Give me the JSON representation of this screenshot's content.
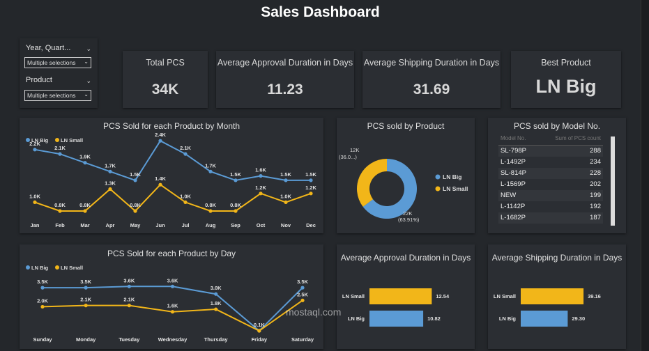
{
  "title": "Sales Dashboard",
  "slicers": [
    {
      "label": "Year, Quart...",
      "selection": "Multiple selections"
    },
    {
      "label": "Product",
      "selection": "Multiple selections"
    }
  ],
  "kpis": [
    {
      "label": "Total PCS",
      "value": "34K"
    },
    {
      "label": "Average Approval Duration in Days",
      "value": "11.23"
    },
    {
      "label": "Average Shipping Duration in Days",
      "value": "31.69"
    },
    {
      "label": "Best Product",
      "value": "LN Big"
    }
  ],
  "colors": {
    "ln_big": "#5b9bd5",
    "ln_small": "#f2b619"
  },
  "chart_data": [
    {
      "title": "PCS Sold for each Product by Month",
      "type": "line",
      "categories": [
        "Jan",
        "Feb",
        "Mar",
        "Apr",
        "May",
        "Jun",
        "Jul",
        "Aug",
        "Sep",
        "Oct",
        "Nov",
        "Dec"
      ],
      "series": [
        {
          "name": "LN Big",
          "values": [
            2.2,
            2.1,
            1.9,
            1.7,
            1.5,
            2.4,
            2.1,
            1.7,
            1.5,
            1.6,
            1.5,
            1.5
          ],
          "labels": [
            "2.2K",
            "2.1K",
            "1.9K",
            "1.7K",
            "1.5K",
            "2.4K",
            "2.1K",
            "1.7K",
            "1.5K",
            "1.6K",
            "1.5K",
            "1.5K"
          ]
        },
        {
          "name": "LN Small",
          "values": [
            1.0,
            0.8,
            0.8,
            1.3,
            0.8,
            1.4,
            1.0,
            0.8,
            0.8,
            1.2,
            1.0,
            1.2
          ],
          "labels": [
            "1.0K",
            "0.8K",
            "0.8K",
            "1.3K",
            "0.8K",
            "1.4K",
            "1.0K",
            "0.8K",
            "0.8K",
            "1.2K",
            "1.0K",
            "1.2K"
          ]
        }
      ],
      "legend": "top-left"
    },
    {
      "title": "PCS sold by Product",
      "type": "pie",
      "slices": [
        {
          "name": "LN Big",
          "value": 22,
          "label": "22K",
          "pct_label": "(63.91%)"
        },
        {
          "name": "LN Small",
          "value": 12,
          "label": "12K",
          "pct_label": "(36.0...)"
        }
      ],
      "legend": "right"
    },
    {
      "title": "PCS sold by Model No.",
      "type": "table",
      "columns": [
        "Model No.",
        "Sum of PCS count"
      ],
      "rows": [
        [
          "SL-798P",
          "288"
        ],
        [
          "L-1492P",
          "234"
        ],
        [
          "SL-814P",
          "228"
        ],
        [
          "L-1569P",
          "202"
        ],
        [
          "NEW",
          "199"
        ],
        [
          "L-1142P",
          "192"
        ],
        [
          "L-1682P",
          "187"
        ]
      ]
    },
    {
      "title": "PCS Sold for each Product by Day",
      "type": "line",
      "categories": [
        "Sunday",
        "Monday",
        "Tuesday",
        "Wednesday",
        "Thursday",
        "Friday",
        "Saturday"
      ],
      "series": [
        {
          "name": "LN Big",
          "values": [
            3.5,
            3.5,
            3.6,
            3.6,
            3.0,
            0.1,
            3.5
          ],
          "labels": [
            "3.5K",
            "3.5K",
            "3.6K",
            "3.6K",
            "3.0K",
            "",
            "3.5K"
          ]
        },
        {
          "name": "LN Small",
          "values": [
            2.0,
            2.1,
            2.1,
            1.6,
            1.8,
            0.1,
            2.5
          ],
          "labels": [
            "2.0K",
            "2.1K",
            "2.1K",
            "1.6K",
            "1.8K",
            "0.1K",
            "2.5K"
          ]
        }
      ],
      "legend": "top-left"
    },
    {
      "title": "Average Approval Duration in Days",
      "type": "bar",
      "orientation": "horizontal",
      "categories": [
        "LN Small",
        "LN Big"
      ],
      "values": [
        12.54,
        10.82
      ],
      "labels": [
        "12.54",
        "10.82"
      ],
      "xlim": [
        0,
        16
      ]
    },
    {
      "title": "Average Shipping Duration in Days",
      "type": "bar",
      "orientation": "horizontal",
      "categories": [
        "LN Small",
        "LN Big"
      ],
      "values": [
        39.16,
        29.3
      ],
      "labels": [
        "39.16",
        "29.30"
      ],
      "xlim": [
        0,
        50
      ]
    }
  ],
  "watermark": "mostaql.com"
}
